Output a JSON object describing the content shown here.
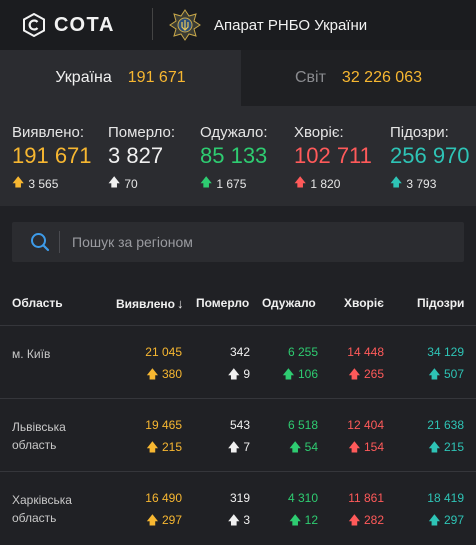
{
  "header": {
    "brand": "СОТА",
    "org_name": "Апарат РНБО України"
  },
  "tabs": [
    {
      "label": "Україна",
      "value": "191 671"
    },
    {
      "label": "Світ",
      "value": "32 226 063"
    }
  ],
  "stats": [
    {
      "label": "Виявлено:",
      "value": "191 671",
      "delta": "3 565",
      "color": "#f7b731",
      "arrow_color": "#f7b731"
    },
    {
      "label": "Померло:",
      "value": "3 827",
      "delta": "70",
      "color": "#f0f0f0",
      "arrow_color": "#f0f0f0"
    },
    {
      "label": "Одужало:",
      "value": "85 133",
      "delta": "1 675",
      "color": "#2ecc71",
      "arrow_color": "#2ecc71"
    },
    {
      "label": "Хворіє:",
      "value": "102 711",
      "delta": "1 820",
      "color": "#ff5a5a",
      "arrow_color": "#ff5a5a"
    },
    {
      "label": "Підозри:",
      "value": "256 970",
      "delta": "3 793",
      "color": "#2ec4b6",
      "arrow_color": "#2ec4b6"
    }
  ],
  "search": {
    "placeholder": "Пошук за регіоном"
  },
  "table": {
    "headers": {
      "region": "Область",
      "detected": "Виявлено",
      "sort_arrow": "↓",
      "died": "Померло",
      "recovered": "Одужало",
      "sick": "Хворіє",
      "suspected": "Підозри"
    },
    "rows": [
      {
        "region": "м. Київ",
        "detected": "21 045",
        "detected_d": "380",
        "died": "342",
        "died_d": "9",
        "recovered": "6 255",
        "recovered_d": "106",
        "sick": "14 448",
        "sick_d": "265",
        "suspected": "34 129",
        "suspected_d": "507"
      },
      {
        "region": "Львівська область",
        "detected": "19 465",
        "detected_d": "215",
        "died": "543",
        "died_d": "7",
        "recovered": "6 518",
        "recovered_d": "54",
        "sick": "12 404",
        "sick_d": "154",
        "suspected": "21 638",
        "suspected_d": "215"
      },
      {
        "region": "Харківська область",
        "detected": "16 490",
        "detected_d": "297",
        "died": "319",
        "died_d": "3",
        "recovered": "4 310",
        "recovered_d": "12",
        "sick": "11 861",
        "sick_d": "282",
        "suspected": "18 419",
        "suspected_d": "297"
      }
    ]
  }
}
